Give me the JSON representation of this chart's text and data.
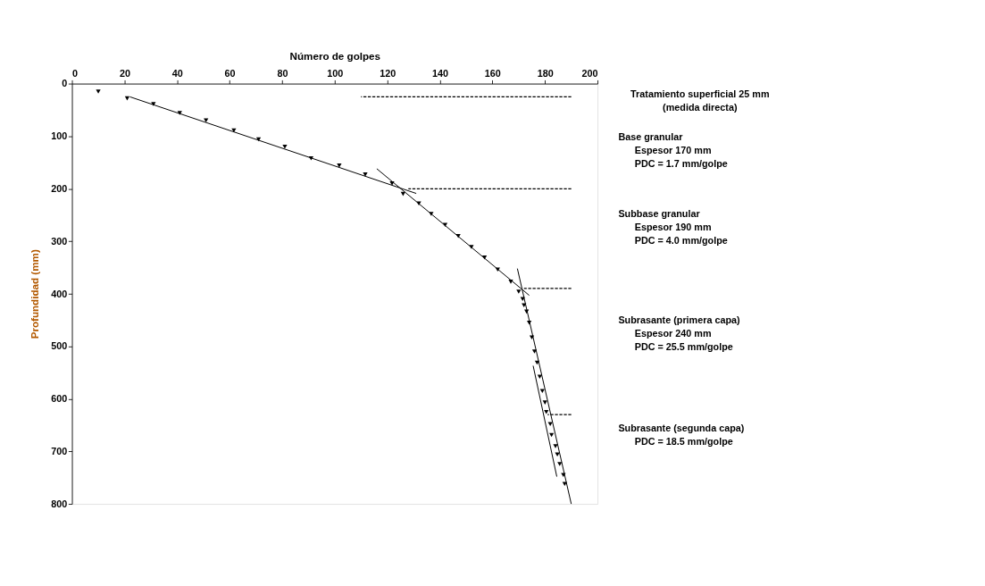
{
  "chart_data": {
    "type": "scatter",
    "xlabel": "Número de golpes",
    "ylabel": "Profundidad (mm)",
    "xlim": [
      0,
      200
    ],
    "xticks": [
      0,
      20,
      40,
      60,
      80,
      100,
      120,
      140,
      160,
      180,
      200
    ],
    "ylim": [
      800,
      0
    ],
    "yticks": [
      0,
      100,
      200,
      300,
      400,
      500,
      600,
      700,
      800
    ],
    "grid": false,
    "series": [
      {
        "color": "#000000",
        "marker": "triangle",
        "x": [
          10,
          21,
          31,
          41,
          51,
          61.6,
          71,
          81,
          91,
          101.7,
          111.6,
          121.8,
          126,
          132,
          136.7,
          142,
          147,
          152,
          157,
          162,
          167,
          170,
          171.5,
          172,
          173,
          174,
          175,
          176,
          177,
          178,
          179,
          180,
          180.5,
          182,
          182.5,
          184,
          184.7,
          185.6,
          187,
          187.5
        ],
        "values": [
          15,
          28,
          39,
          56,
          70,
          89,
          106,
          120,
          142,
          156,
          173,
          190,
          210,
          228,
          248,
          269,
          290,
          311,
          331,
          354,
          377,
          396,
          410,
          422,
          434,
          455,
          483,
          510,
          531,
          558,
          585,
          607,
          625,
          648,
          669,
          690,
          706,
          724,
          745,
          762
        ]
      },
      {
        "type": "line",
        "color": "#000000",
        "line_style": "solid",
        "x": [
          22,
          131
        ],
        "values": [
          25,
          209
        ]
      },
      {
        "type": "line",
        "color": "#000000",
        "line_style": "solid",
        "x": [
          116,
          174
        ],
        "values": [
          162,
          403
        ]
      },
      {
        "type": "line",
        "color": "#000000",
        "line_style": "solid",
        "x": [
          169.5,
          190
        ],
        "values": [
          352,
          800
        ]
      },
      {
        "type": "line",
        "color": "#000000",
        "line_style": "solid",
        "x": [
          175.5,
          184.5
        ],
        "values": [
          537,
          748
        ]
      },
      {
        "type": "line",
        "color": "#000000",
        "line_style": "dashed",
        "x": [
          110,
          190
        ],
        "values": [
          25,
          25
        ]
      },
      {
        "type": "line",
        "color": "#000000",
        "line_style": "dashed",
        "x": [
          128,
          190
        ],
        "values": [
          200,
          200
        ]
      },
      {
        "type": "line",
        "color": "#000000",
        "line_style": "dashed",
        "x": [
          172,
          190
        ],
        "values": [
          390,
          390
        ]
      },
      {
        "type": "line",
        "color": "#000000",
        "line_style": "dashed",
        "x": [
          181,
          190
        ],
        "values": [
          630,
          630
        ]
      }
    ],
    "annotations": [
      "Tratamiento superficial 25 mm\n(medida directa)",
      "Base granular\nEspesor  170 mm\nPDC = 1.7 mm/golpe",
      "Subbase granular\nEspesor  190 mm\nPDC = 4.0 mm/golpe",
      "Subrasante (primera capa)\nEspesor   240 mm\nPDC = 25.5 mm/golpe",
      "Subrasante (segunda capa)\nPDC = 18.5 mm/golpe"
    ]
  }
}
